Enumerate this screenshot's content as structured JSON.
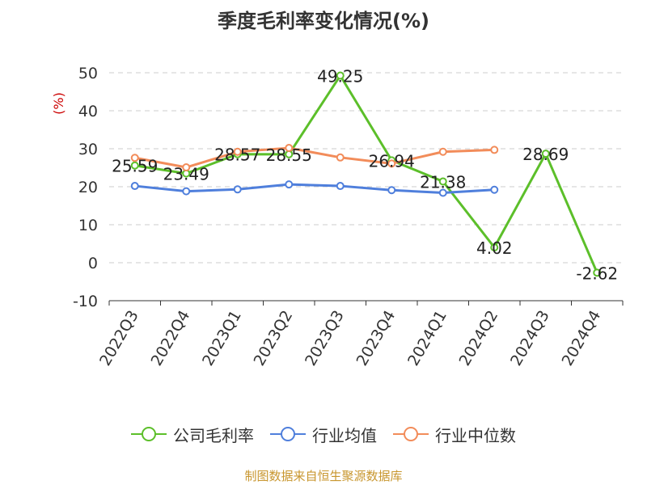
{
  "chart_data": {
    "type": "line",
    "title": "季度毛利率变化情况(%)",
    "ylabel": "(%)",
    "xlabel": "",
    "ylim": [
      -10,
      50
    ],
    "yticks": [
      50,
      40,
      30,
      20,
      10,
      0,
      -10
    ],
    "grid": true,
    "legend_position": "bottom",
    "categories": [
      "2022Q3",
      "2022Q4",
      "2023Q1",
      "2023Q2",
      "2023Q3",
      "2023Q4",
      "2024Q1",
      "2024Q2",
      "2024Q3",
      "2024Q4"
    ],
    "series": [
      {
        "name": "公司毛利率",
        "color": "#5cbf2a",
        "values": [
          25.59,
          23.49,
          28.57,
          28.55,
          49.25,
          26.94,
          21.38,
          4.02,
          28.69,
          -2.62
        ],
        "labels": [
          "25.59",
          "23.49",
          "28.57",
          "28.55",
          "49.25",
          "26.94",
          "21.38",
          "4.02",
          "28.69",
          "-2.62"
        ]
      },
      {
        "name": "行业均值",
        "color": "#4f7fdc",
        "values": [
          20.2,
          18.8,
          19.3,
          20.6,
          20.2,
          19.1,
          18.4,
          19.2,
          null,
          null
        ]
      },
      {
        "name": "行业中位数",
        "color": "#f28c5a",
        "values": [
          27.6,
          25.1,
          29.2,
          30.2,
          27.7,
          26.1,
          29.2,
          29.7,
          null,
          null
        ]
      }
    ],
    "source_note": "制图数据来自恒生聚源数据库"
  }
}
